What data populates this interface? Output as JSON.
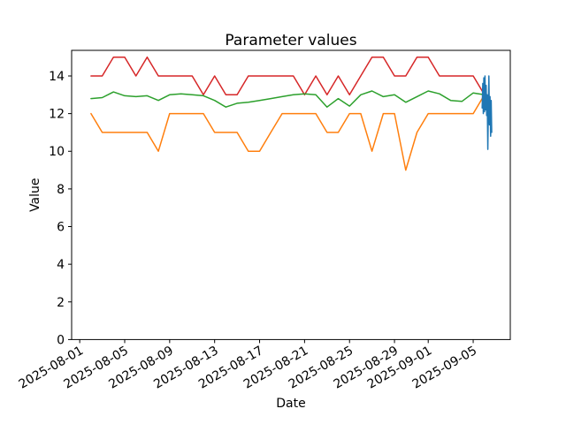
{
  "chart_data": {
    "type": "line",
    "title": "Parameter values",
    "xlabel": "Date",
    "ylabel": "Value",
    "grid": false,
    "legend": "none",
    "ylim": [
      0,
      15.36
    ],
    "xlim_days": [
      -0.72,
      38.3
    ],
    "x_ticks": [
      "2025-08-01",
      "2025-08-05",
      "2025-08-09",
      "2025-08-13",
      "2025-08-17",
      "2025-08-21",
      "2025-08-25",
      "2025-08-29",
      "2025-09-01",
      "2025-09-05"
    ],
    "y_ticks": [
      0,
      2,
      4,
      6,
      8,
      10,
      12,
      14
    ],
    "dates": [
      "2025-08-02",
      "2025-08-03",
      "2025-08-04",
      "2025-08-05",
      "2025-08-06",
      "2025-08-07",
      "2025-08-08",
      "2025-08-09",
      "2025-08-10",
      "2025-08-11",
      "2025-08-12",
      "2025-08-13",
      "2025-08-14",
      "2025-08-15",
      "2025-08-16",
      "2025-08-17",
      "2025-08-18",
      "2025-08-19",
      "2025-08-20",
      "2025-08-21",
      "2025-08-22",
      "2025-08-23",
      "2025-08-24",
      "2025-08-25",
      "2025-08-26",
      "2025-08-27",
      "2025-08-28",
      "2025-08-29",
      "2025-08-30",
      "2025-08-31",
      "2025-09-01",
      "2025-09-02",
      "2025-09-03",
      "2025-09-04",
      "2025-09-05",
      "2025-09-06"
    ],
    "series": [
      {
        "name": "red",
        "color": "#d62728",
        "values": [
          14,
          14,
          15,
          15,
          14,
          15,
          14,
          14,
          14,
          14,
          13,
          14,
          13,
          13,
          14,
          14,
          14,
          14,
          14,
          13,
          14,
          13,
          14,
          13,
          14,
          15,
          15,
          14,
          14,
          15,
          15,
          14,
          14,
          14,
          14,
          13
        ]
      },
      {
        "name": "green",
        "color": "#2ca02c",
        "values": [
          12.8,
          12.85,
          13.15,
          12.95,
          12.9,
          12.95,
          12.7,
          13.0,
          13.05,
          13.0,
          12.95,
          12.7,
          12.35,
          12.55,
          12.6,
          12.7,
          12.8,
          12.9,
          13.0,
          13.05,
          13.0,
          12.35,
          12.8,
          12.4,
          13.0,
          13.2,
          12.9,
          13.0,
          12.6,
          12.9,
          13.2,
          13.05,
          12.7,
          12.65,
          13.1,
          13.0
        ]
      },
      {
        "name": "orange",
        "color": "#ff7f0e",
        "values": [
          12,
          11,
          11,
          11,
          11,
          11,
          10,
          12,
          12,
          12,
          12,
          11,
          11,
          11,
          10,
          10,
          11,
          12,
          12,
          12,
          12,
          11,
          11,
          12,
          12,
          10,
          12,
          12,
          9,
          11,
          12,
          12,
          12,
          12,
          12,
          13
        ]
      }
    ],
    "dense_series": {
      "name": "blue",
      "color": "#1f77b4",
      "note": "x values are fractional days since 2025-08-01",
      "x_days": [
        35.8,
        35.85,
        35.9,
        35.95,
        36.0,
        36.05,
        36.1,
        36.15,
        36.2,
        36.25,
        36.3,
        36.35,
        36.4,
        36.45,
        36.5,
        36.55,
        36.6,
        36.65
      ],
      "values": [
        12.3,
        13.6,
        12.0,
        13.9,
        12.1,
        14.0,
        12.2,
        13.5,
        11.9,
        13.0,
        10.1,
        12.4,
        14.0,
        11.4,
        12.9,
        10.8,
        12.7,
        11.0
      ]
    }
  }
}
